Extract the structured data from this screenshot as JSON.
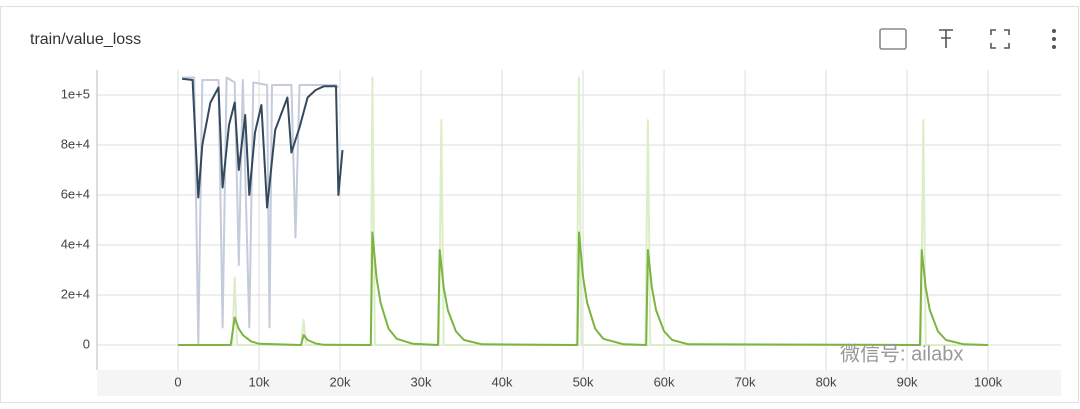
{
  "chart_data": {
    "type": "line",
    "title": "train/value_loss",
    "xlim": [
      -10000,
      109000
    ],
    "ylim": [
      -10000,
      110000
    ],
    "xticks": [
      {
        "value": 0,
        "label": "0"
      },
      {
        "value": 10000,
        "label": "10k"
      },
      {
        "value": 20000,
        "label": "20k"
      },
      {
        "value": 30000,
        "label": "30k"
      },
      {
        "value": 40000,
        "label": "40k"
      },
      {
        "value": 50000,
        "label": "50k"
      },
      {
        "value": 60000,
        "label": "60k"
      },
      {
        "value": 70000,
        "label": "70k"
      },
      {
        "value": 80000,
        "label": "80k"
      },
      {
        "value": 90000,
        "label": "90k"
      },
      {
        "value": 100000,
        "label": "100k"
      }
    ],
    "yticks": [
      0,
      {
        "value": 20000,
        "label": "2e+4"
      },
      {
        "value": 40000,
        "label": "4e+4"
      },
      {
        "value": 60000,
        "label": "6e+4"
      },
      {
        "value": 80000,
        "label": "8e+4"
      },
      {
        "value": 100000,
        "label": "1e+5"
      }
    ],
    "grid": true,
    "watermark": "微信号: ailabx",
    "series": [
      {
        "color": "#c5cbdb",
        "x": [
          500,
          2000,
          2500,
          3000,
          5000,
          5500,
          6000,
          7000,
          7500,
          8000,
          8800,
          9300,
          11000,
          11300,
          11600,
          14000,
          14500,
          15000,
          17000,
          19500,
          19800
        ],
        "values": [
          107000,
          107000,
          0,
          106000,
          106000,
          7000,
          107000,
          105000,
          32000,
          106000,
          7000,
          105000,
          104000,
          7000,
          104000,
          104000,
          43000,
          104000,
          104000,
          104000,
          103000
        ]
      },
      {
        "color": "#dcedc8",
        "x": [
          0,
          6700,
          7000,
          7300,
          15200,
          15500,
          15800,
          23800,
          24000,
          24300,
          32200,
          32500,
          32800,
          49200,
          49500,
          49800,
          57700,
          58000,
          58300,
          91700,
          92000,
          92300,
          100000
        ],
        "values": [
          0,
          0,
          27000,
          0,
          0,
          10000,
          0,
          0,
          107000,
          0,
          0,
          90000,
          0,
          0,
          107000,
          0,
          0,
          90000,
          0,
          0,
          90000,
          0,
          0
        ]
      },
      {
        "color": "#34495e",
        "x": [
          500,
          1800,
          2500,
          3000,
          4000,
          5000,
          5500,
          6300,
          7000,
          7500,
          8300,
          8800,
          9500,
          10300,
          11000,
          12000,
          13500,
          14000,
          15000,
          16000,
          17000,
          18000,
          19500,
          19800,
          20300
        ],
        "values": [
          106500,
          106000,
          59000,
          80000,
          97000,
          103000,
          63000,
          88000,
          97000,
          70000,
          92000,
          60000,
          85000,
          96000,
          55000,
          86000,
          99000,
          77000,
          87000,
          99000,
          102000,
          103500,
          103500,
          60000,
          78000
        ]
      },
      {
        "color": "#7cb342",
        "x": [
          0,
          6500,
          7000,
          7500,
          8000,
          9000,
          10000,
          15200,
          15500,
          16000,
          17000,
          18000,
          23800,
          24000,
          24500,
          25000,
          26000,
          27000,
          29000,
          32100,
          32300,
          32800,
          33300,
          34300,
          35300,
          37500,
          49300,
          49500,
          50000,
          50500,
          51500,
          52500,
          55000,
          57800,
          58000,
          58500,
          59000,
          60000,
          61000,
          63000,
          91600,
          91800,
          92300,
          92800,
          93800,
          94800,
          97000,
          100000
        ],
        "values": [
          0,
          0,
          11000,
          6500,
          4000,
          1500,
          500,
          0,
          4000,
          2000,
          600,
          100,
          0,
          45000,
          27000,
          17000,
          6500,
          2500,
          500,
          0,
          38000,
          23000,
          14000,
          5500,
          2000,
          300,
          0,
          45000,
          27000,
          17000,
          6500,
          2500,
          300,
          0,
          38000,
          23000,
          14000,
          5500,
          2000,
          300,
          0,
          38000,
          23000,
          14000,
          5500,
          2000,
          300,
          0
        ]
      }
    ]
  }
}
